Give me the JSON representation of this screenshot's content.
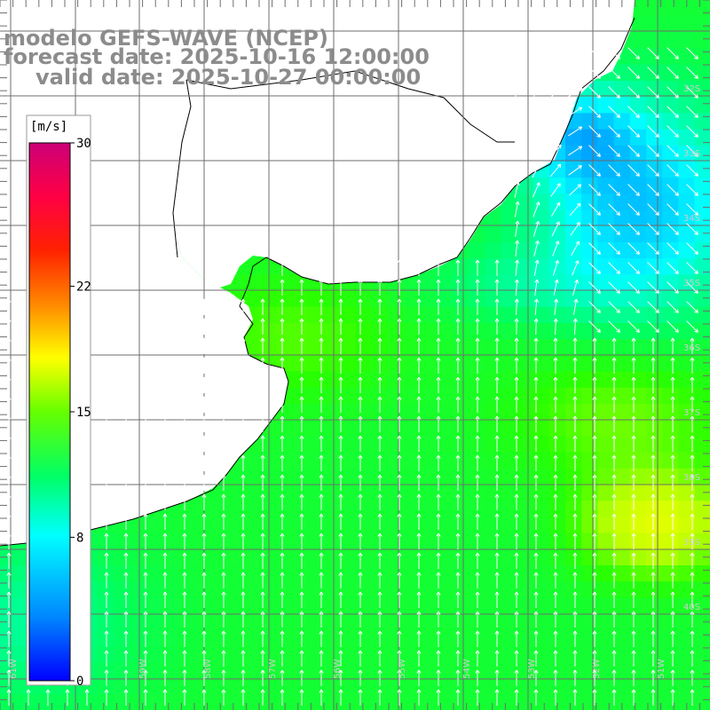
{
  "header": {
    "model": "modelo GEFS-WAVE (NCEP)",
    "forecast": "forecast date: 2025-10-16 12:00:00",
    "valid": "valid date: 2025-10-27 00:00:00"
  },
  "colorbar": {
    "unit": "[m/s]",
    "min": 0,
    "max": 30,
    "tick_labels": [
      "30",
      "22",
      "15",
      "8",
      "0"
    ],
    "tick_values": [
      30,
      22,
      15,
      8,
      0
    ],
    "colors": [
      "#0000ff",
      "#00aaff",
      "#00ffff",
      "#00ff66",
      "#33ff00",
      "#aaff00",
      "#ffff00",
      "#ffaa00",
      "#ff4400",
      "#ff0000",
      "#ff0066",
      "#cc0077"
    ]
  },
  "map": {
    "lat_labels": [
      "32S",
      "33S",
      "34S",
      "35S",
      "36S",
      "37S",
      "38S",
      "39S",
      "40S"
    ],
    "lon_labels": [
      "61W",
      "60W",
      "59W",
      "58W",
      "57W",
      "56W",
      "55W",
      "54W",
      "53W",
      "52W",
      "51W"
    ],
    "field_description_speed_range": [
      8,
      16
    ],
    "wind_direction_dominant": "north"
  }
}
